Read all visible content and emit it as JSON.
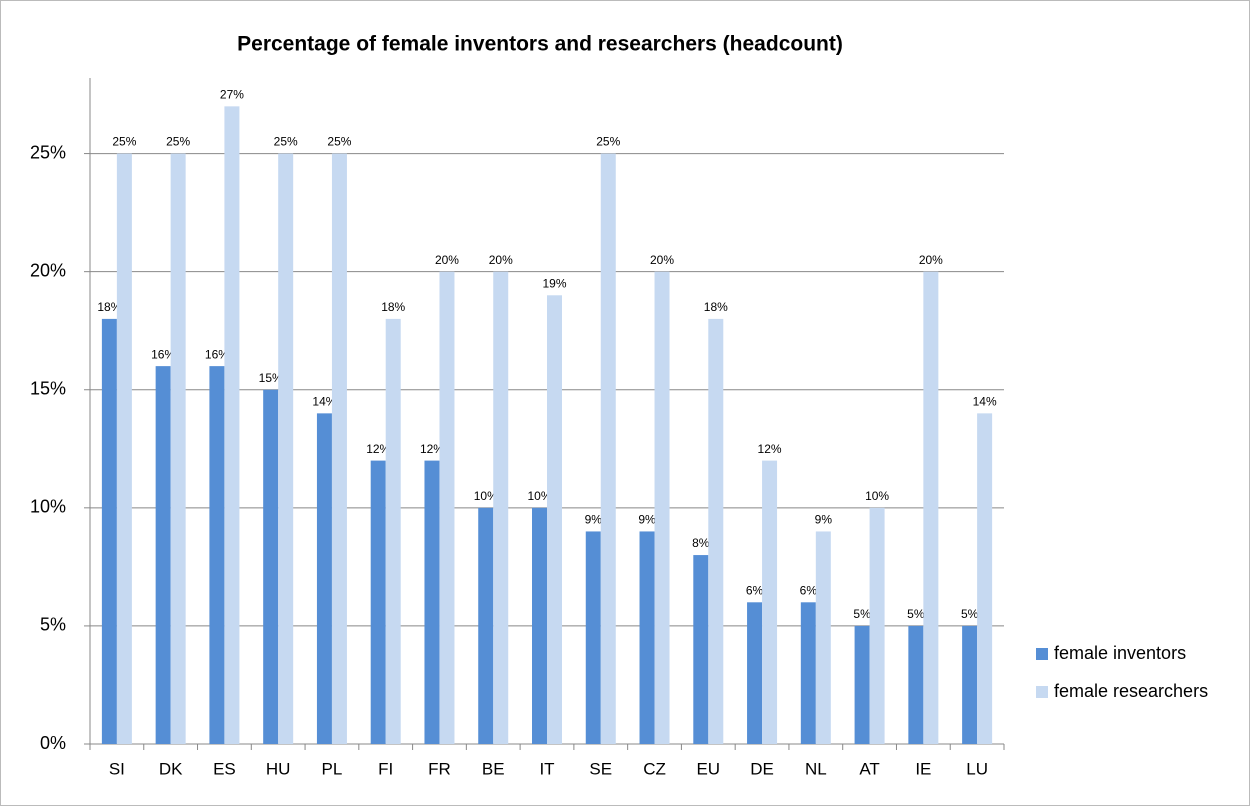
{
  "chart_data": {
    "type": "bar",
    "title": "Percentage of female inventors and researchers (headcount)",
    "categories": [
      "SI",
      "DK",
      "ES",
      "HU",
      "PL",
      "FI",
      "FR",
      "BE",
      "IT",
      "SE",
      "CZ",
      "EU",
      "DE",
      "NL",
      "AT",
      "IE",
      "LU"
    ],
    "series": [
      {
        "name": "female inventors",
        "color": "#558ed5",
        "values": [
          18,
          16,
          16,
          15,
          14,
          12,
          12,
          10,
          10,
          9,
          9,
          8,
          6,
          6,
          5,
          5,
          5
        ],
        "value_labels": [
          "18%",
          "16%",
          "16%",
          "15%",
          "14%",
          "12%",
          "12%",
          "10%",
          "10%",
          "9%",
          "9%",
          "8%",
          "6%",
          "6%",
          "5%",
          "5%",
          "5%"
        ]
      },
      {
        "name": "female researchers",
        "color": "#c6d9f1",
        "values": [
          25,
          25,
          27,
          25,
          25,
          18,
          20,
          20,
          19,
          25,
          20,
          18,
          12,
          9,
          10,
          20,
          14
        ],
        "value_labels": [
          "25%",
          "25%",
          "27%",
          "25%",
          "25%",
          "18%",
          "20%",
          "20%",
          "19%",
          "25%",
          "20%",
          "18%",
          "12%",
          "9%",
          "10%",
          "20%",
          "14%"
        ]
      }
    ],
    "ylim": [
      0,
      28.2
    ],
    "yticks": [
      {
        "value": 0,
        "label": "0%"
      },
      {
        "value": 5,
        "label": "5%"
      },
      {
        "value": 10,
        "label": "10%"
      },
      {
        "value": 15,
        "label": "15%"
      },
      {
        "value": 20,
        "label": "20%"
      },
      {
        "value": 25,
        "label": "25%"
      }
    ],
    "grid": true,
    "legend": "right"
  }
}
